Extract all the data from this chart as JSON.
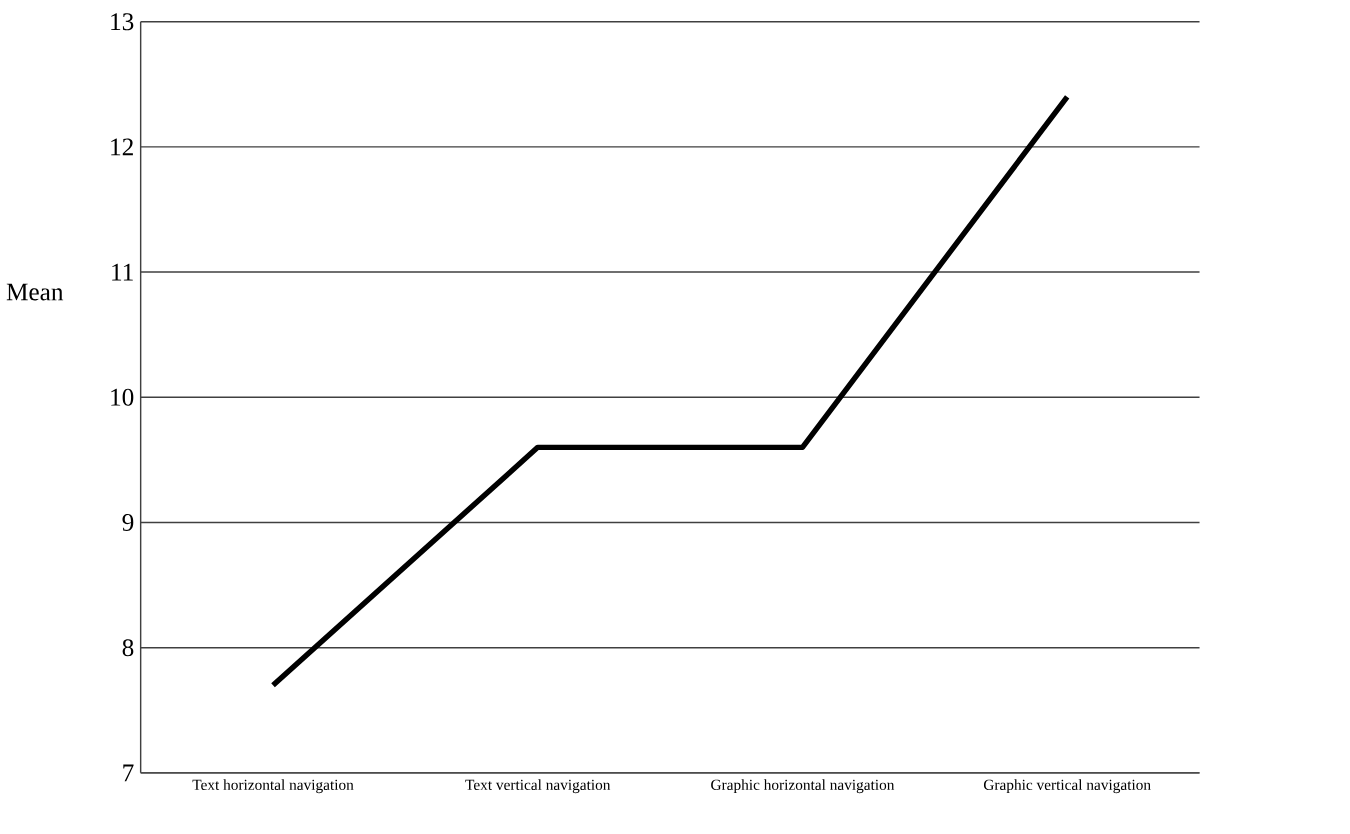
{
  "chart_data": {
    "type": "line",
    "ylabel": "Mean",
    "categories": [
      "Text horizontal navigation",
      "Text vertical navigation",
      "Graphic horizontal navigation",
      "Graphic vertical navigation"
    ],
    "values": [
      7.7,
      9.6,
      9.6,
      12.4
    ],
    "color": "#000000",
    "ylim": [
      7,
      13
    ],
    "yticks": [
      7,
      8,
      9,
      10,
      11,
      12,
      13
    ],
    "grid": "y",
    "marker": "none",
    "line_style": "solid"
  }
}
